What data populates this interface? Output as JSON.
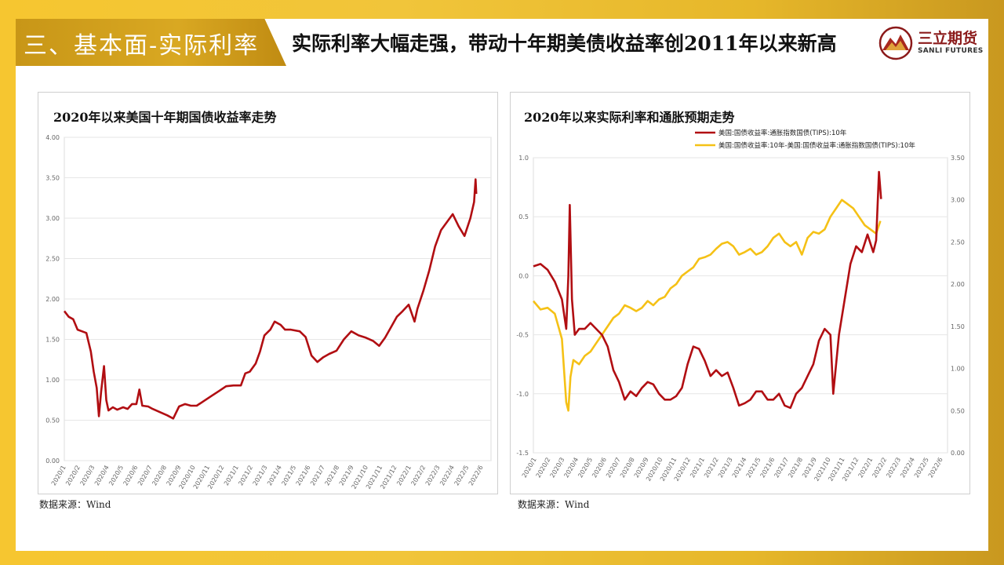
{
  "section": {
    "title": "三、基本面-实际利率"
  },
  "headline": "实际利率大幅走强，带动十年期美债收益率创2011年以来新高",
  "logo": {
    "cn": "三立期货",
    "en": "SANLI FUTURES"
  },
  "colors": {
    "red": "#b10e12",
    "yellow": "#f5c116",
    "gold": "#d4a21f"
  },
  "date_labels": [
    "2020/1",
    "2020/2",
    "2020/3",
    "2020/4",
    "2020/5",
    "2020/6",
    "2020/7",
    "2020/8",
    "2020/9",
    "2020/10",
    "2020/11",
    "2020/12",
    "2021/1",
    "2021/2",
    "2021/3",
    "2021/4",
    "2021/5",
    "2021/6",
    "2021/7",
    "2021/8",
    "2021/9",
    "2021/10",
    "2021/11",
    "2021/12",
    "2022/1",
    "2022/2",
    "2022/3",
    "2022/4",
    "2022/5",
    "2022/6"
  ],
  "chart_data": [
    {
      "type": "line",
      "title": "2020年以来美国十年期国债收益率走势",
      "source": "数据来源：Wind",
      "ylim": [
        0,
        4
      ],
      "yticks": [
        "0.00",
        "0.50",
        "1.00",
        "1.50",
        "2.00",
        "2.50",
        "3.00",
        "3.50",
        "4.00"
      ],
      "grid": true,
      "series": [
        {
          "color": "#b10e12",
          "points": [
            [
              0,
              1.85
            ],
            [
              0.3,
              1.78
            ],
            [
              0.6,
              1.75
            ],
            [
              0.9,
              1.62
            ],
            [
              1.2,
              1.6
            ],
            [
              1.5,
              1.58
            ],
            [
              1.8,
              1.35
            ],
            [
              2.0,
              1.1
            ],
            [
              2.2,
              0.9
            ],
            [
              2.35,
              0.55
            ],
            [
              2.5,
              0.85
            ],
            [
              2.7,
              1.17
            ],
            [
              2.85,
              0.75
            ],
            [
              3.0,
              0.62
            ],
            [
              3.3,
              0.66
            ],
            [
              3.6,
              0.63
            ],
            [
              4.0,
              0.66
            ],
            [
              4.3,
              0.64
            ],
            [
              4.6,
              0.7
            ],
            [
              4.9,
              0.7
            ],
            [
              5.1,
              0.88
            ],
            [
              5.3,
              0.68
            ],
            [
              5.7,
              0.67
            ],
            [
              6.0,
              0.64
            ],
            [
              6.5,
              0.6
            ],
            [
              7.0,
              0.56
            ],
            [
              7.4,
              0.52
            ],
            [
              7.8,
              0.67
            ],
            [
              8.2,
              0.7
            ],
            [
              8.6,
              0.68
            ],
            [
              9.0,
              0.68
            ],
            [
              9.5,
              0.74
            ],
            [
              10.0,
              0.8
            ],
            [
              10.5,
              0.86
            ],
            [
              11.0,
              0.92
            ],
            [
              11.5,
              0.93
            ],
            [
              12.0,
              0.93
            ],
            [
              12.3,
              1.08
            ],
            [
              12.6,
              1.1
            ],
            [
              13.0,
              1.2
            ],
            [
              13.3,
              1.35
            ],
            [
              13.6,
              1.55
            ],
            [
              14.0,
              1.62
            ],
            [
              14.3,
              1.72
            ],
            [
              14.7,
              1.68
            ],
            [
              15.0,
              1.62
            ],
            [
              15.4,
              1.62
            ],
            [
              16.0,
              1.6
            ],
            [
              16.4,
              1.53
            ],
            [
              16.8,
              1.3
            ],
            [
              17.2,
              1.22
            ],
            [
              17.6,
              1.28
            ],
            [
              18.0,
              1.32
            ],
            [
              18.5,
              1.36
            ],
            [
              19.0,
              1.5
            ],
            [
              19.5,
              1.6
            ],
            [
              20.0,
              1.55
            ],
            [
              20.5,
              1.52
            ],
            [
              21.0,
              1.48
            ],
            [
              21.4,
              1.42
            ],
            [
              21.8,
              1.52
            ],
            [
              22.2,
              1.65
            ],
            [
              22.6,
              1.78
            ],
            [
              23.0,
              1.85
            ],
            [
              23.4,
              1.93
            ],
            [
              23.8,
              1.72
            ],
            [
              24.0,
              1.88
            ],
            [
              24.4,
              2.1
            ],
            [
              24.8,
              2.35
            ],
            [
              25.2,
              2.65
            ],
            [
              25.6,
              2.85
            ],
            [
              26.0,
              2.95
            ],
            [
              26.4,
              3.05
            ],
            [
              26.8,
              2.9
            ],
            [
              27.2,
              2.78
            ],
            [
              27.6,
              3.0
            ],
            [
              27.85,
              3.2
            ],
            [
              27.95,
              3.48
            ],
            [
              28.0,
              3.3
            ]
          ]
        }
      ]
    },
    {
      "type": "line",
      "title": "2020年以来实际利率和通胀预期走势",
      "source": "数据来源：Wind",
      "y_left": {
        "ylim": [
          -1.5,
          1.0
        ],
        "ticks": [
          "1.0",
          "0.5",
          "0.0",
          "-0.5",
          "-1.0",
          "-1.5"
        ]
      },
      "y_right": {
        "ylim": [
          0.0,
          3.5
        ],
        "ticks": [
          "3.50",
          "3.00",
          "2.50",
          "2.00",
          "1.50",
          "1.00",
          "0.50",
          "0.00"
        ]
      },
      "grid": true,
      "legend_position": "top-right",
      "series": [
        {
          "name": "美国:国债收益率:通胀指数国债(TIPS):10年",
          "axis": "left",
          "color": "#b10e12",
          "points": [
            [
              0,
              0.08
            ],
            [
              0.5,
              0.1
            ],
            [
              1.0,
              0.05
            ],
            [
              1.5,
              -0.05
            ],
            [
              2.0,
              -0.2
            ],
            [
              2.3,
              -0.45
            ],
            [
              2.45,
              0.0
            ],
            [
              2.55,
              0.6
            ],
            [
              2.7,
              -0.2
            ],
            [
              2.9,
              -0.5
            ],
            [
              3.2,
              -0.45
            ],
            [
              3.6,
              -0.45
            ],
            [
              4.0,
              -0.4
            ],
            [
              4.4,
              -0.45
            ],
            [
              4.8,
              -0.5
            ],
            [
              5.2,
              -0.6
            ],
            [
              5.6,
              -0.8
            ],
            [
              6.0,
              -0.9
            ],
            [
              6.4,
              -1.05
            ],
            [
              6.8,
              -0.98
            ],
            [
              7.2,
              -1.02
            ],
            [
              7.6,
              -0.95
            ],
            [
              8.0,
              -0.9
            ],
            [
              8.4,
              -0.92
            ],
            [
              8.8,
              -1.0
            ],
            [
              9.2,
              -1.05
            ],
            [
              9.6,
              -1.05
            ],
            [
              10.0,
              -1.02
            ],
            [
              10.4,
              -0.95
            ],
            [
              10.8,
              -0.75
            ],
            [
              11.2,
              -0.6
            ],
            [
              11.6,
              -0.62
            ],
            [
              12.0,
              -0.72
            ],
            [
              12.4,
              -0.85
            ],
            [
              12.8,
              -0.8
            ],
            [
              13.2,
              -0.85
            ],
            [
              13.6,
              -0.82
            ],
            [
              14.0,
              -0.95
            ],
            [
              14.4,
              -1.1
            ],
            [
              14.8,
              -1.08
            ],
            [
              15.2,
              -1.05
            ],
            [
              15.6,
              -0.98
            ],
            [
              16.0,
              -0.98
            ],
            [
              16.4,
              -1.05
            ],
            [
              16.8,
              -1.05
            ],
            [
              17.2,
              -1.0
            ],
            [
              17.6,
              -1.1
            ],
            [
              18.0,
              -1.12
            ],
            [
              18.4,
              -1.0
            ],
            [
              18.8,
              -0.95
            ],
            [
              19.2,
              -0.85
            ],
            [
              19.6,
              -0.75
            ],
            [
              20.0,
              -0.55
            ],
            [
              20.4,
              -0.45
            ],
            [
              20.8,
              -0.5
            ],
            [
              21.0,
              -1.0
            ],
            [
              21.4,
              -0.5
            ],
            [
              21.8,
              -0.2
            ],
            [
              22.2,
              0.1
            ],
            [
              22.6,
              0.25
            ],
            [
              23.0,
              0.2
            ],
            [
              23.4,
              0.35
            ],
            [
              23.8,
              0.2
            ],
            [
              24.0,
              0.3
            ],
            [
              24.2,
              0.88
            ],
            [
              24.35,
              0.65
            ]
          ]
        },
        {
          "name": "美国:国债收益率:10年-美国:国债收益率:通胀指数国债(TIPS):10年",
          "axis": "right",
          "color": "#f5c116",
          "points": [
            [
              0,
              1.8
            ],
            [
              0.5,
              1.7
            ],
            [
              1.0,
              1.72
            ],
            [
              1.5,
              1.65
            ],
            [
              2.0,
              1.35
            ],
            [
              2.3,
              0.6
            ],
            [
              2.45,
              0.5
            ],
            [
              2.6,
              0.9
            ],
            [
              2.8,
              1.1
            ],
            [
              3.2,
              1.05
            ],
            [
              3.6,
              1.15
            ],
            [
              4.0,
              1.2
            ],
            [
              4.4,
              1.3
            ],
            [
              4.8,
              1.4
            ],
            [
              5.2,
              1.5
            ],
            [
              5.6,
              1.6
            ],
            [
              6.0,
              1.65
            ],
            [
              6.4,
              1.75
            ],
            [
              6.8,
              1.72
            ],
            [
              7.2,
              1.68
            ],
            [
              7.6,
              1.72
            ],
            [
              8.0,
              1.8
            ],
            [
              8.4,
              1.75
            ],
            [
              8.8,
              1.82
            ],
            [
              9.2,
              1.85
            ],
            [
              9.6,
              1.95
            ],
            [
              10.0,
              2.0
            ],
            [
              10.4,
              2.1
            ],
            [
              10.8,
              2.15
            ],
            [
              11.2,
              2.2
            ],
            [
              11.6,
              2.3
            ],
            [
              12.0,
              2.32
            ],
            [
              12.4,
              2.35
            ],
            [
              12.8,
              2.42
            ],
            [
              13.2,
              2.48
            ],
            [
              13.6,
              2.5
            ],
            [
              14.0,
              2.45
            ],
            [
              14.4,
              2.35
            ],
            [
              14.8,
              2.38
            ],
            [
              15.2,
              2.42
            ],
            [
              15.6,
              2.35
            ],
            [
              16.0,
              2.38
            ],
            [
              16.4,
              2.45
            ],
            [
              16.8,
              2.55
            ],
            [
              17.2,
              2.6
            ],
            [
              17.6,
              2.5
            ],
            [
              18.0,
              2.45
            ],
            [
              18.4,
              2.5
            ],
            [
              18.8,
              2.35
            ],
            [
              19.2,
              2.55
            ],
            [
              19.6,
              2.62
            ],
            [
              20.0,
              2.6
            ],
            [
              20.4,
              2.65
            ],
            [
              20.8,
              2.8
            ],
            [
              21.2,
              2.9
            ],
            [
              21.6,
              3.0
            ],
            [
              22.0,
              2.95
            ],
            [
              22.4,
              2.9
            ],
            [
              22.8,
              2.8
            ],
            [
              23.2,
              2.7
            ],
            [
              23.6,
              2.65
            ],
            [
              24.0,
              2.6
            ],
            [
              24.3,
              2.75
            ]
          ]
        }
      ]
    }
  ]
}
